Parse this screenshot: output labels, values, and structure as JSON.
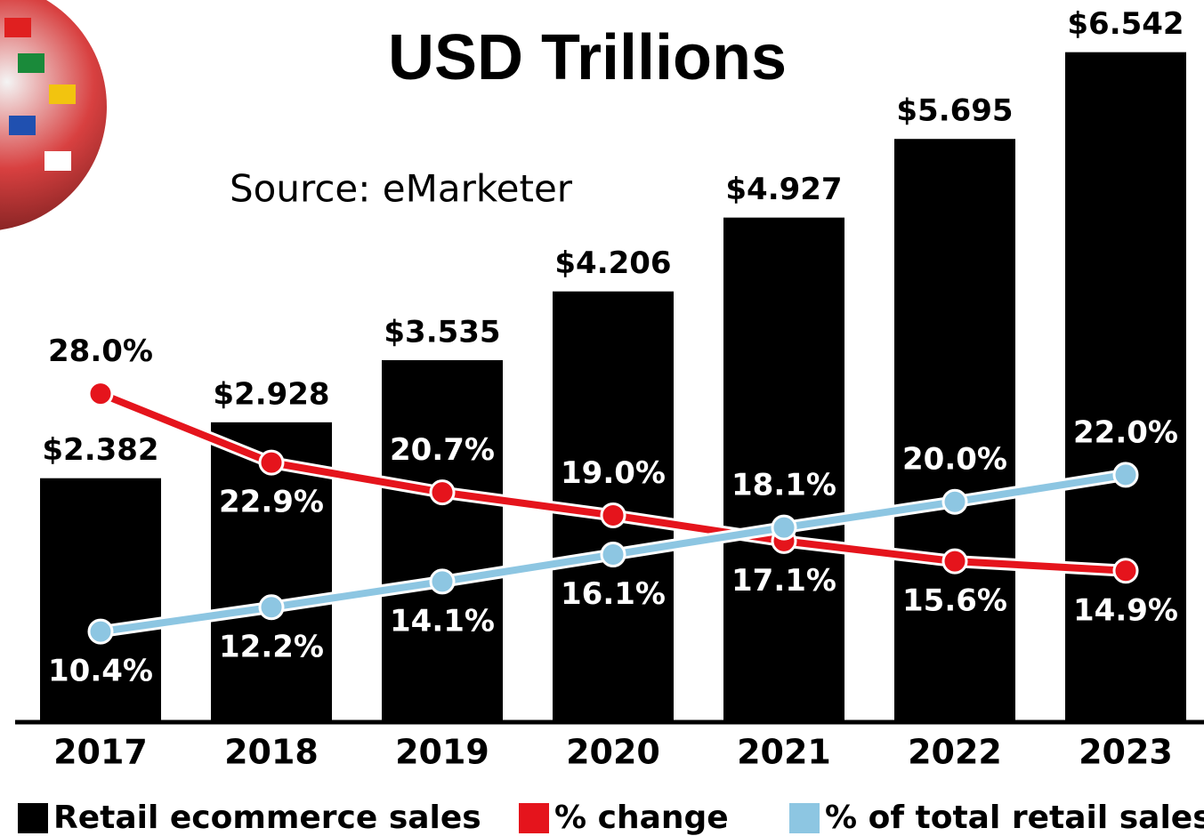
{
  "chart_data": {
    "type": "bar",
    "title": "USD Trillions",
    "subtitle": "Source: eMarketer",
    "categories": [
      "2017",
      "2018",
      "2019",
      "2020",
      "2021",
      "2022",
      "2023"
    ],
    "ylim": [
      0,
      6.6
    ],
    "y2lim": [
      3.7,
      53.7
    ],
    "series": [
      {
        "name": "Retail ecommerce sales",
        "type": "bar",
        "color": "#000000",
        "values": [
          2.382,
          2.928,
          3.535,
          4.206,
          4.927,
          5.695,
          6.542
        ],
        "value_labels": [
          "$2.382",
          "$2.928",
          "$3.535",
          "$4.206",
          "$4.927",
          "$5.695",
          "$6.542"
        ]
      },
      {
        "name": "% change",
        "type": "line",
        "axis": "y2",
        "color": "#e5141c",
        "values": [
          28.0,
          22.9,
          20.7,
          19.0,
          17.1,
          15.6,
          14.9
        ],
        "value_labels": [
          "28.0%",
          "22.9%",
          "20.7%",
          "19.0%",
          "17.1%",
          "15.6%",
          "14.9%"
        ]
      },
      {
        "name": "% of total retail sales",
        "type": "line",
        "axis": "y2",
        "color": "#8dc6e2",
        "values": [
          10.4,
          12.2,
          14.1,
          16.1,
          18.1,
          20.0,
          22.0
        ],
        "value_labels": [
          "10.4%",
          "12.2%",
          "14.1%",
          "16.1%",
          "18.1%",
          "20.0%",
          "22.0%"
        ]
      }
    ]
  }
}
